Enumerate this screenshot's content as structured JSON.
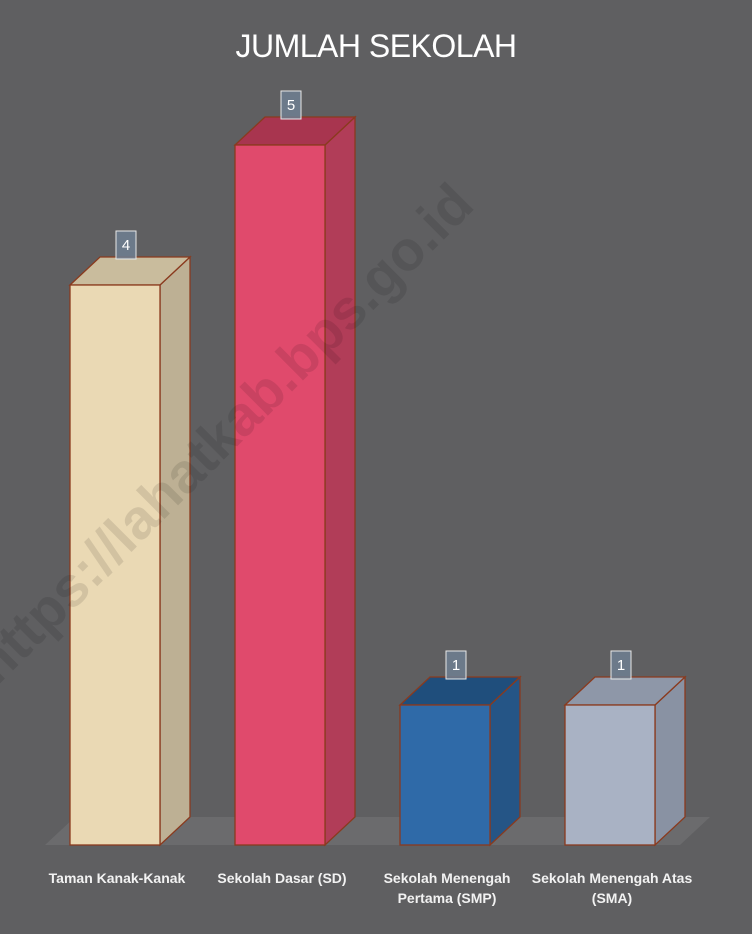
{
  "chart_data": {
    "type": "bar",
    "title": "JUMLAH SEKOLAH",
    "categories": [
      "Taman Kanak-Kanak",
      "Sekolah Dasar (SD)",
      "Sekolah Menengah Pertama (SMP)",
      "Sekolah Menengah Atas (SMA)"
    ],
    "values": [
      4,
      5,
      1,
      1
    ],
    "data_labels": [
      "4",
      "5",
      "1",
      "1"
    ],
    "ylim": [
      0,
      5
    ],
    "grid": false,
    "legend": "none",
    "style": "3d-column",
    "colors": [
      "#ead9b4",
      "#e04a6c",
      "#2f6aa8",
      "#a9b2c4"
    ],
    "side_colors": [
      "#bdb094",
      "#b13d58",
      "#255586",
      "#8992a3"
    ],
    "top_colors": [
      "#c9bc9d",
      "#a8354f",
      "#1f4e7c",
      "#8e97a8"
    ],
    "edge_color": "#8a3a1e"
  },
  "watermark": "https://lahatkab.bps.go.id"
}
